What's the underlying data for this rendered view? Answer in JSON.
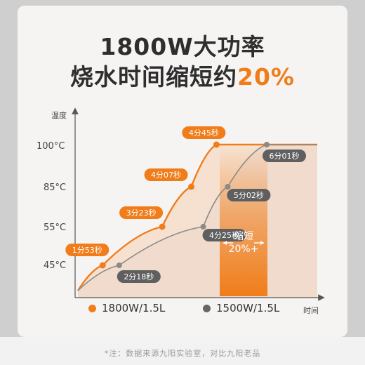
{
  "title": {
    "line1": "1800W大功率",
    "line2_main": "烧水时间缩短约",
    "line2_highlight": "20%"
  },
  "footnote": "*注：数据来源九阳实验室，对比九阳老品",
  "colors": {
    "orange": "#f07d1a",
    "gray": "#666666",
    "axis": "#555555"
  },
  "chart_data": {
    "type": "line",
    "ylabel": "温度",
    "xlabel": "时间",
    "y_ticks": [
      "45°C",
      "55°C",
      "85°C",
      "100°C"
    ],
    "series": [
      {
        "name": "1800W/1.5L",
        "color": "#f07d1a",
        "points": [
          {
            "y": 45,
            "label": "1分53秒"
          },
          {
            "y": 55,
            "label": "3分23秒"
          },
          {
            "y": 85,
            "label": "4分07秒"
          },
          {
            "y": 100,
            "label": "4分45秒"
          }
        ]
      },
      {
        "name": "1500W/1.5L",
        "color": "#666666",
        "points": [
          {
            "y": 45,
            "label": "2分18秒"
          },
          {
            "y": 55,
            "label": "4分25秒"
          },
          {
            "y": 85,
            "label": "5分02秒"
          },
          {
            "y": 100,
            "label": "6分01秒"
          }
        ]
      }
    ],
    "annotation": {
      "line1": "缩短",
      "line2": "20%+"
    },
    "legend_position": "bottom"
  }
}
